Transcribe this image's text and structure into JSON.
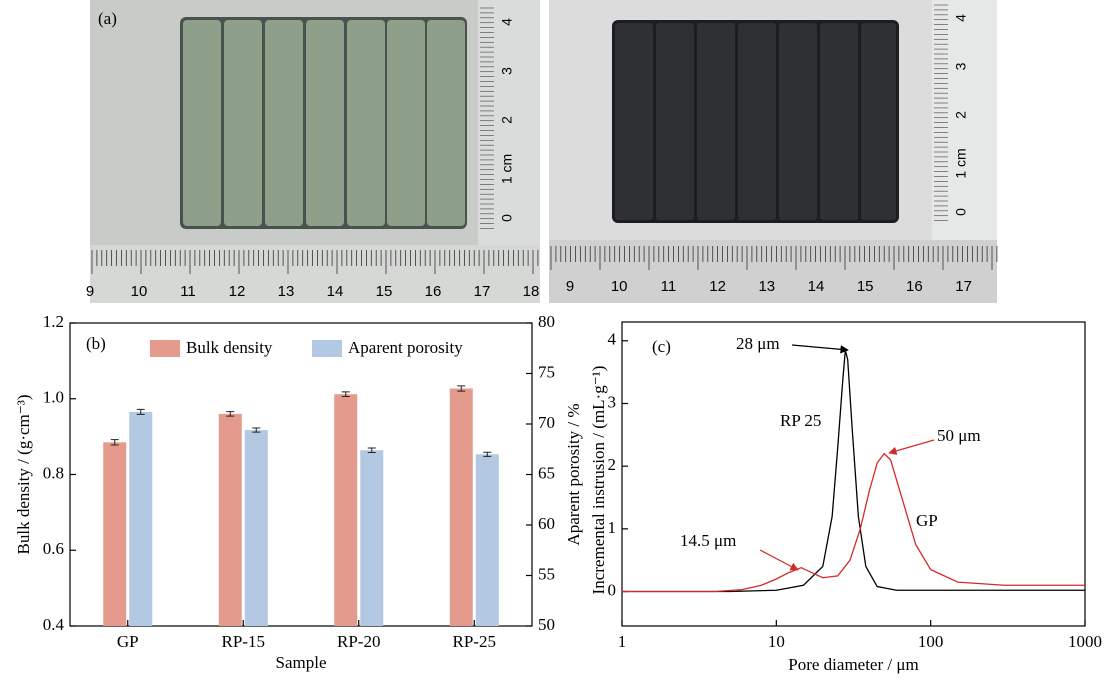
{
  "panel_a": {
    "label": "(a)",
    "photos": [
      {
        "ruler_h": [
          "9",
          "10",
          "11",
          "12",
          "13",
          "14",
          "15",
          "16",
          "17",
          "18"
        ],
        "ruler_v": [
          "0",
          "1 cm",
          "2",
          "3",
          "4"
        ]
      },
      {
        "ruler_h": [
          "9",
          "10",
          "11",
          "12",
          "13",
          "14",
          "15",
          "16",
          "17"
        ],
        "ruler_v": [
          "0",
          "1 cm",
          "2",
          "3",
          "4"
        ]
      }
    ]
  },
  "chart_data": [
    {
      "type": "bar",
      "panel_label": "(b)",
      "xlabel": "Sample",
      "ylabel": "Bulk density / (g·cm⁻³)",
      "y2label": "Aparent porosity / %",
      "categories": [
        "GP",
        "RP-15",
        "RP-20",
        "RP-25"
      ],
      "series": [
        {
          "name": "Bulk density",
          "color": "#e59a8e",
          "values": [
            0.885,
            0.96,
            1.012,
            1.027
          ],
          "errors": [
            0.007,
            0.006,
            0.006,
            0.007
          ]
        },
        {
          "name": "Aparent porosity",
          "color": "#b3c8e2",
          "axis": "y2",
          "values": [
            71.2,
            69.4,
            67.4,
            67.0
          ],
          "errors": [
            0.25,
            0.2,
            0.22,
            0.2
          ]
        }
      ],
      "ylim": [
        0.4,
        1.2
      ],
      "yticks": [
        0.4,
        0.6,
        0.8,
        {
          "value": 1,
          "label": "1.0"
        },
        1.2
      ],
      "y2lim": [
        50,
        80
      ],
      "y2ticks": [
        50,
        55,
        60,
        65,
        70,
        75,
        80
      ],
      "legend": "top"
    },
    {
      "type": "line",
      "panel_label": "(c)",
      "xlabel": "Pore diameter / μm",
      "ylabel": "Incremental instrusion / (mL·g⁻¹)",
      "log_x": true,
      "xlim": [
        1,
        1000
      ],
      "xticks": [
        1,
        10,
        100,
        1000
      ],
      "ylim": [
        -0.55,
        4.3
      ],
      "yticks": [
        0,
        1,
        2,
        3,
        4
      ],
      "series": [
        {
          "name": "RP 25",
          "color": "#000000",
          "x": [
            1,
            5,
            10,
            15,
            20,
            23,
            25,
            27,
            28,
            29,
            31,
            34,
            38,
            45,
            60,
            100,
            1000
          ],
          "values": [
            0,
            0,
            0.02,
            0.1,
            0.4,
            1.2,
            2.3,
            3.4,
            3.85,
            3.7,
            2.6,
            1.2,
            0.4,
            0.08,
            0.02,
            0.02,
            0.02
          ]
        },
        {
          "name": "GP",
          "color": "#d42a2a",
          "x": [
            1,
            4,
            6,
            8,
            10,
            12,
            14.5,
            17,
            20,
            25,
            30,
            35,
            40,
            45,
            50,
            55,
            65,
            80,
            100,
            150,
            300,
            1000
          ],
          "values": [
            0,
            0,
            0.03,
            0.1,
            0.2,
            0.3,
            0.38,
            0.3,
            0.22,
            0.25,
            0.5,
            1.0,
            1.6,
            2.05,
            2.2,
            2.1,
            1.5,
            0.75,
            0.35,
            0.15,
            0.1,
            0.1
          ]
        }
      ],
      "annotations": [
        {
          "text": "28 μm",
          "color": "#000000"
        },
        {
          "text": "50 μm",
          "color": "#d42a2a"
        },
        {
          "text": "14.5 μm",
          "color": "#d42a2a"
        }
      ]
    }
  ]
}
